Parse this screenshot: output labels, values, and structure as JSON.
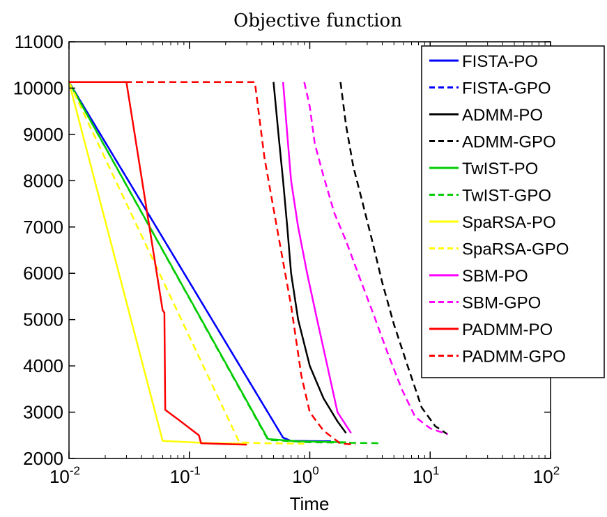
{
  "chart_data": {
    "type": "line",
    "title": "Objective function",
    "xlabel": "Time",
    "ylabel": "",
    "xscale": "log",
    "xlim": [
      0.01,
      100
    ],
    "ylim": [
      2000,
      11000
    ],
    "xticks": [
      0.01,
      0.1,
      1,
      10,
      100
    ],
    "xtick_labels": [
      {
        "base": "10",
        "exp": "-2"
      },
      {
        "base": "10",
        "exp": "-1"
      },
      {
        "base": "10",
        "exp": "0"
      },
      {
        "base": "10",
        "exp": "1"
      },
      {
        "base": "10",
        "exp": "2"
      }
    ],
    "yticks": [
      2000,
      3000,
      4000,
      5000,
      6000,
      7000,
      8000,
      9000,
      10000,
      11000
    ],
    "ytick_labels": [
      "2000",
      "3000",
      "4000",
      "5000",
      "6000",
      "7000",
      "8000",
      "9000",
      "10000",
      "11000"
    ],
    "grid": false,
    "legend_position": "top-right",
    "series": [
      {
        "name": "FISTA-PO",
        "color": "#0000ff",
        "dash": "solid",
        "x": [
          0.01,
          0.6,
          0.7,
          1.5
        ],
        "y": [
          10130,
          2450,
          2380,
          2370
        ]
      },
      {
        "name": "FISTA-GPO",
        "color": "#0000ff",
        "dash": "dashed",
        "x": [
          0.01,
          0.6,
          0.7,
          1.5
        ],
        "y": [
          10130,
          2450,
          2380,
          2370
        ]
      },
      {
        "name": "ADMM-PO",
        "color": "#000000",
        "dash": "solid",
        "x": [
          0.5,
          0.55,
          0.6,
          0.65,
          0.7,
          0.8,
          1.0,
          1.3,
          1.7,
          2.0
        ],
        "y": [
          10130,
          9000,
          8000,
          7000,
          6000,
          5000,
          4000,
          3300,
          2800,
          2550
        ]
      },
      {
        "name": "ADMM-GPO",
        "color": "#000000",
        "dash": "dashed",
        "x": [
          1.8,
          2.0,
          2.3,
          2.7,
          3.3,
          4.0,
          5.0,
          6.5,
          8.5,
          11,
          14
        ],
        "y": [
          10130,
          9200,
          8300,
          7600,
          6700,
          5800,
          4900,
          4000,
          3100,
          2700,
          2520
        ]
      },
      {
        "name": "TwIST-PO",
        "color": "#00cc00",
        "dash": "solid",
        "x": [
          0.01,
          0.45,
          0.8,
          2.0
        ],
        "y": [
          10130,
          2420,
          2370,
          2350
        ]
      },
      {
        "name": "TwIST-GPO",
        "color": "#00cc00",
        "dash": "dashed",
        "x": [
          0.01,
          0.45,
          1.0,
          3.8
        ],
        "y": [
          10130,
          2400,
          2350,
          2330
        ]
      },
      {
        "name": "SpaRSA-PO",
        "color": "#ffff00",
        "dash": "solid",
        "x": [
          0.01,
          0.06,
          0.15,
          0.3
        ],
        "y": [
          10130,
          2380,
          2330,
          2320
        ]
      },
      {
        "name": "SpaRSA-GPO",
        "color": "#ffff00",
        "dash": "dashed",
        "x": [
          0.01,
          0.26,
          0.4,
          0.9
        ],
        "y": [
          10130,
          2350,
          2330,
          2320
        ]
      },
      {
        "name": "SBM-PO",
        "color": "#ff00ff",
        "dash": "solid",
        "x": [
          0.6,
          0.65,
          0.7,
          0.8,
          0.95,
          1.15,
          1.4,
          1.7,
          2.2
        ],
        "y": [
          10130,
          9000,
          8000,
          7000,
          6000,
          5000,
          4000,
          3000,
          2550
        ]
      },
      {
        "name": "SBM-GPO",
        "color": "#ff00ff",
        "dash": "dashed",
        "x": [
          0.9,
          1.0,
          1.1,
          1.3,
          1.6,
          2.0,
          2.6,
          3.4,
          4.4,
          5.8,
          7.5,
          10,
          14
        ],
        "y": [
          10130,
          9600,
          8800,
          8100,
          7300,
          6700,
          5900,
          5100,
          4300,
          3500,
          2900,
          2650,
          2520
        ]
      },
      {
        "name": "PADMM-PO",
        "color": "#ff0000",
        "dash": "solid",
        "x": [
          0.01,
          0.03,
          0.06,
          0.062,
          0.063,
          0.08,
          0.12,
          0.125,
          0.2,
          0.3
        ],
        "y": [
          10130,
          10130,
          5200,
          5150,
          3050,
          2850,
          2500,
          2330,
          2310,
          2300
        ]
      },
      {
        "name": "PADMM-GPO",
        "color": "#ff0000",
        "dash": "dashed",
        "x": [
          0.01,
          0.35,
          0.42,
          0.55,
          0.7,
          0.85,
          1.0,
          1.3,
          1.8,
          2.4
        ],
        "y": [
          10130,
          10130,
          8500,
          6800,
          5300,
          3800,
          3000,
          2600,
          2320,
          2300
        ]
      }
    ]
  }
}
